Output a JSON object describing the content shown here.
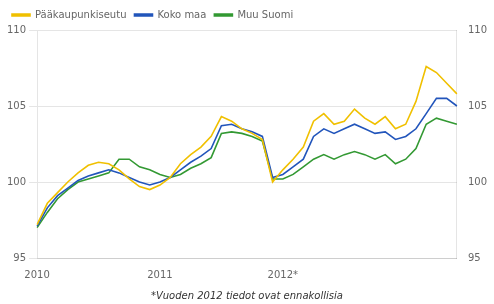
{
  "chart_data": {
    "type": "line",
    "footnote": "*Vuoden 2012 tiedot ovat ennakollisia",
    "categories": [
      "2010",
      null,
      null,
      null,
      null,
      null,
      null,
      null,
      null,
      null,
      null,
      null,
      "2011",
      null,
      null,
      null,
      null,
      null,
      null,
      null,
      null,
      null,
      null,
      null,
      "2012*",
      null,
      null,
      null,
      null,
      null,
      null,
      null,
      null,
      null,
      null,
      null,
      null,
      null,
      null,
      null,
      null,
      null
    ],
    "series": [
      {
        "name": "Pääkaupunkiseutu",
        "color": "#f0c000",
        "values": [
          97.2,
          98.6,
          99.3,
          100.0,
          100.6,
          101.1,
          101.3,
          101.2,
          100.8,
          100.2,
          99.7,
          99.5,
          99.8,
          100.3,
          101.2,
          101.8,
          102.3,
          103.0,
          104.3,
          104.0,
          103.5,
          103.2,
          102.8,
          100.0,
          100.8,
          101.5,
          102.3,
          104.0,
          104.5,
          103.8,
          104.0,
          104.8,
          104.2,
          103.8,
          104.3,
          103.5,
          103.8,
          105.3,
          107.6,
          107.2,
          106.5,
          105.8
        ]
      },
      {
        "name": "Koko maa",
        "color": "#2255bb",
        "values": [
          97.1,
          98.3,
          99.1,
          99.6,
          100.1,
          100.4,
          100.6,
          100.8,
          100.6,
          100.3,
          100.0,
          99.8,
          100.0,
          100.3,
          100.8,
          101.3,
          101.7,
          102.2,
          103.7,
          103.8,
          103.5,
          103.3,
          103.0,
          100.3,
          100.5,
          101.0,
          101.5,
          103.0,
          103.5,
          103.2,
          103.5,
          103.8,
          103.5,
          103.2,
          103.3,
          102.8,
          103.0,
          103.5,
          104.5,
          105.5,
          105.5,
          105.0
        ]
      },
      {
        "name": "Muu Suomi",
        "color": "#339933",
        "values": [
          97.0,
          98.0,
          98.9,
          99.5,
          100.0,
          100.2,
          100.4,
          100.6,
          101.5,
          101.5,
          101.0,
          100.8,
          100.5,
          100.3,
          100.5,
          100.9,
          101.2,
          101.6,
          103.2,
          103.3,
          103.2,
          103.0,
          102.7,
          100.2,
          100.2,
          100.5,
          101.0,
          101.5,
          101.8,
          101.5,
          101.8,
          102.0,
          101.8,
          101.5,
          101.8,
          101.2,
          101.5,
          102.2,
          103.8,
          104.2,
          104.0,
          103.8
        ]
      }
    ],
    "ylim": [
      95,
      110
    ],
    "yticks": [
      95,
      100,
      105,
      110
    ],
    "y2lim": [
      95,
      110
    ],
    "y2ticks": [
      95,
      100,
      105,
      110
    ],
    "grid": "y",
    "legend": "upper left"
  }
}
